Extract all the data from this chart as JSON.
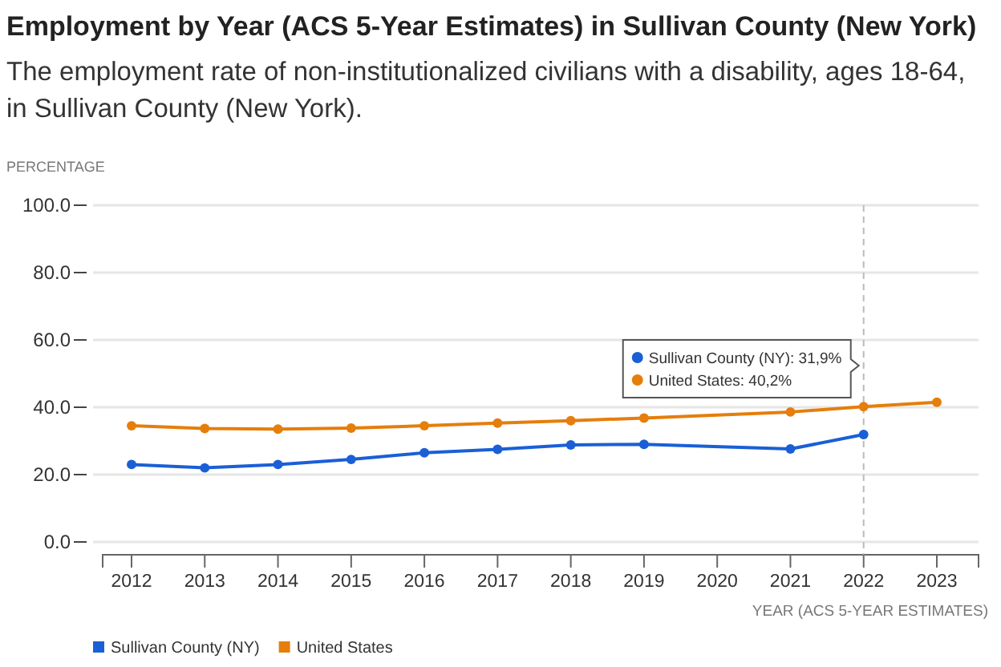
{
  "chart_data": {
    "type": "line",
    "title": "Employment by Year (ACS 5-Year Estimates) in Sullivan County (New York)",
    "subtitle": "The employment rate of non-institutionalized civilians with a disability, ages 18-64, in Sullivan County (New York).",
    "ylabel": "PERCENTAGE",
    "xlabel": "YEAR (ACS 5-YEAR ESTIMATES)",
    "categories": [
      "2012",
      "2013",
      "2014",
      "2015",
      "2016",
      "2017",
      "2018",
      "2019",
      "2020",
      "2021",
      "2022",
      "2023"
    ],
    "series": [
      {
        "name": "Sullivan County (NY)",
        "color": "#1a5fd6",
        "values": [
          23.0,
          22.0,
          23.0,
          24.5,
          26.5,
          27.5,
          28.8,
          29.0,
          null,
          27.6,
          31.9,
          null
        ]
      },
      {
        "name": "United States",
        "color": "#e57e0b",
        "values": [
          34.5,
          33.7,
          33.5,
          33.8,
          34.5,
          35.3,
          36.0,
          36.8,
          null,
          38.6,
          40.2,
          41.5
        ]
      }
    ],
    "ylim": [
      0,
      100
    ],
    "yticks": [
      {
        "value": 0,
        "label": "0.0"
      },
      {
        "value": 20,
        "label": "20.0"
      },
      {
        "value": 40,
        "label": "40.0"
      },
      {
        "value": 60,
        "label": "60.0"
      },
      {
        "value": 80,
        "label": "80.0"
      },
      {
        "value": 100,
        "label": "100.0"
      }
    ],
    "grid": "y",
    "legend": "bottom left",
    "marker": "circle",
    "line_style": "solid",
    "ref_lines": [
      {
        "axis": "x",
        "value": "2022",
        "color": "#bbbbbb",
        "line_style": "dashed"
      }
    ],
    "annotations": [
      "Sullivan County (NY): 31,9%",
      "United States: 40,2%"
    ]
  }
}
